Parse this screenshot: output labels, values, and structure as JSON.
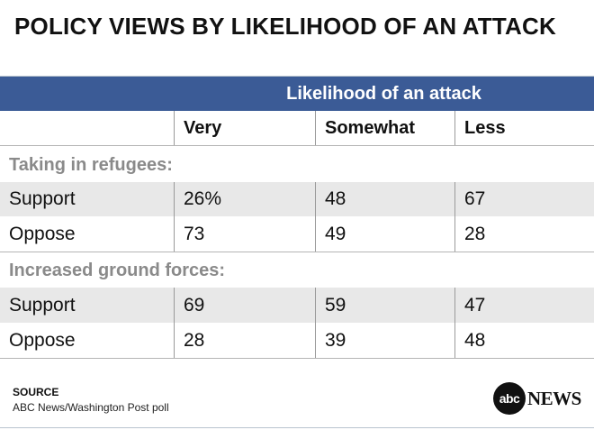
{
  "title": "POLICY VIEWS BY LIKELIHOOD OF AN ATTACK",
  "chart_data": {
    "type": "table",
    "title": "POLICY VIEWS BY LIKELIHOOD OF AN ATTACK",
    "group_header": "Likelihood of an attack",
    "columns": [
      "Very",
      "Somewhat",
      "Less"
    ],
    "sections": [
      {
        "label": "Taking in refugees:",
        "rows": [
          {
            "label": "Support",
            "values": [
              "26%",
              "48",
              "67"
            ]
          },
          {
            "label": "Oppose",
            "values": [
              "73",
              "49",
              "28"
            ]
          }
        ]
      },
      {
        "label": "Increased ground forces:",
        "rows": [
          {
            "label": "Support",
            "values": [
              "69",
              "59",
              "47"
            ]
          },
          {
            "label": "Oppose",
            "values": [
              "28",
              "39",
              "48"
            ]
          }
        ]
      }
    ]
  },
  "source": {
    "heading": "SOURCE",
    "text": "ABC News/Washington Post poll"
  },
  "logo": {
    "mark": "abc",
    "text": "NEWS"
  },
  "colors": {
    "header_band": "#3b5b96",
    "shaded_row": "#e8e8e8",
    "section_label": "#8a8a8a"
  }
}
